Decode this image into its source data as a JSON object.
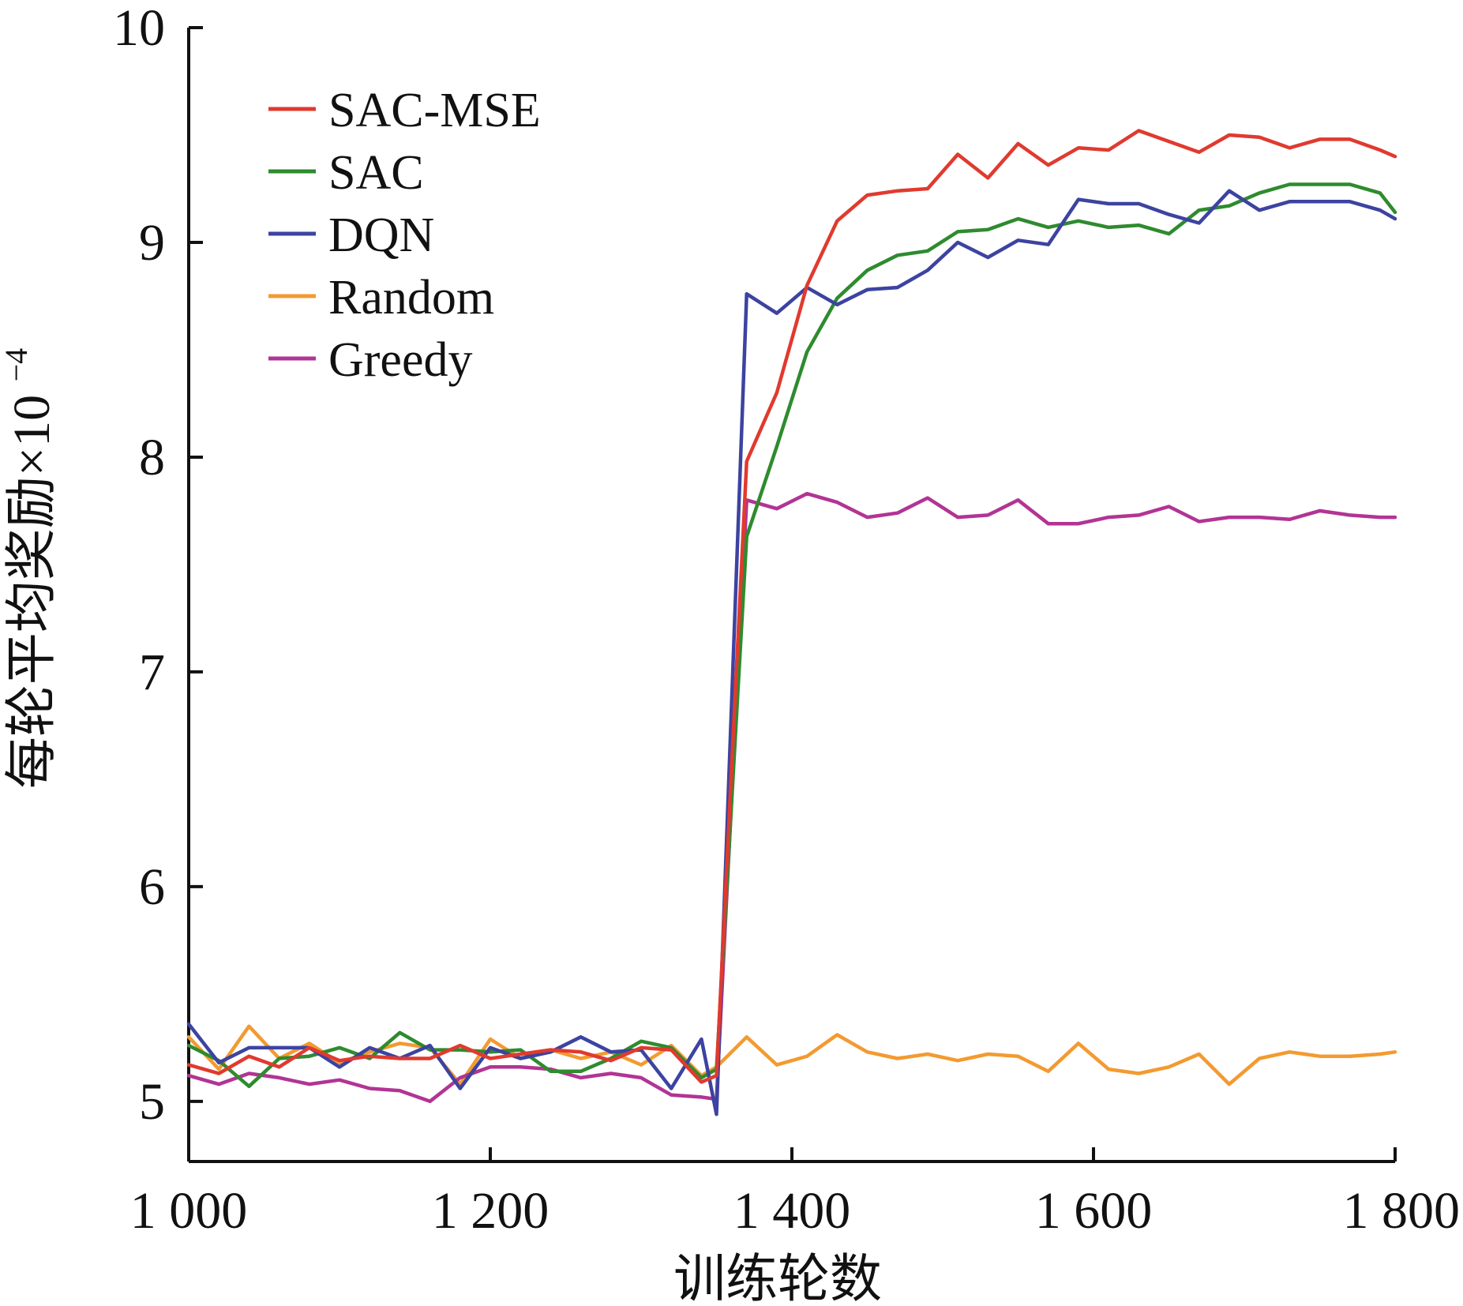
{
  "chart_data": {
    "type": "line",
    "title": "",
    "xlabel": "训练轮数",
    "ylabel": "每轮平均奖励×10",
    "ylabel_superscript": "−4",
    "xlim": [
      1000,
      1800
    ],
    "ylim": [
      4.72,
      10
    ],
    "x_ticks": [
      1000,
      1200,
      1400,
      1600,
      1800
    ],
    "x_tick_labels": [
      "1 000",
      "1 200",
      "1 400",
      "1 600",
      "1 800"
    ],
    "y_ticks": [
      5,
      6,
      7,
      8,
      9,
      10
    ],
    "y_tick_labels": [
      "5",
      "6",
      "7",
      "8",
      "9",
      "10"
    ],
    "grid": false,
    "legend_position": "top-left",
    "x": [
      1000,
      1020,
      1040,
      1060,
      1080,
      1100,
      1120,
      1140,
      1160,
      1180,
      1200,
      1220,
      1240,
      1260,
      1280,
      1300,
      1320,
      1340,
      1350,
      1370,
      1390,
      1410,
      1430,
      1450,
      1470,
      1490,
      1510,
      1530,
      1550,
      1570,
      1590,
      1610,
      1630,
      1650,
      1670,
      1690,
      1710,
      1730,
      1750,
      1770,
      1790,
      1800
    ],
    "series": [
      {
        "name": "SAC-MSE",
        "color": "#e03a2f",
        "values": [
          5.17,
          5.13,
          5.21,
          5.16,
          5.25,
          5.19,
          5.21,
          5.2,
          5.2,
          5.26,
          5.2,
          5.22,
          5.24,
          5.23,
          5.19,
          5.25,
          5.24,
          5.09,
          5.12,
          7.98,
          8.3,
          8.8,
          9.1,
          9.22,
          9.24,
          9.25,
          9.41,
          9.3,
          9.46,
          9.36,
          9.44,
          9.43,
          9.52,
          9.47,
          9.42,
          9.5,
          9.49,
          9.44,
          9.48,
          9.48,
          9.43,
          9.4
        ]
      },
      {
        "name": "SAC",
        "color": "#2e8b2e",
        "values": [
          5.26,
          5.19,
          5.07,
          5.2,
          5.21,
          5.25,
          5.2,
          5.32,
          5.24,
          5.24,
          5.23,
          5.24,
          5.14,
          5.14,
          5.2,
          5.28,
          5.25,
          5.11,
          5.15,
          7.63,
          8.05,
          8.49,
          8.74,
          8.87,
          8.94,
          8.96,
          9.05,
          9.06,
          9.11,
          9.07,
          9.1,
          9.07,
          9.08,
          9.04,
          9.15,
          9.17,
          9.23,
          9.27,
          9.27,
          9.27,
          9.23,
          9.14
        ]
      },
      {
        "name": "DQN",
        "color": "#3c43a0",
        "values": [
          5.36,
          5.18,
          5.25,
          5.25,
          5.25,
          5.16,
          5.25,
          5.2,
          5.26,
          5.06,
          5.25,
          5.2,
          5.23,
          5.3,
          5.23,
          5.24,
          5.06,
          5.29,
          4.94,
          8.76,
          8.67,
          8.79,
          8.71,
          8.78,
          8.79,
          8.87,
          9.0,
          8.93,
          9.01,
          8.99,
          9.2,
          9.18,
          9.18,
          9.13,
          9.09,
          9.24,
          9.15,
          9.19,
          9.19,
          9.19,
          9.15,
          9.11
        ]
      },
      {
        "name": "Random",
        "color": "#f39a30",
        "values": [
          5.3,
          5.15,
          5.35,
          5.2,
          5.27,
          5.18,
          5.23,
          5.27,
          5.25,
          5.08,
          5.29,
          5.2,
          5.24,
          5.2,
          5.23,
          5.17,
          5.26,
          5.12,
          5.16,
          5.3,
          5.17,
          5.21,
          5.31,
          5.23,
          5.2,
          5.22,
          5.19,
          5.22,
          5.21,
          5.14,
          5.27,
          5.15,
          5.13,
          5.16,
          5.22,
          5.08,
          5.2,
          5.23,
          5.21,
          5.21,
          5.22,
          5.23
        ]
      },
      {
        "name": "Greedy",
        "color": "#b23494",
        "values": [
          5.12,
          5.08,
          5.13,
          5.11,
          5.08,
          5.1,
          5.06,
          5.05,
          5.0,
          5.11,
          5.16,
          5.16,
          5.15,
          5.11,
          5.13,
          5.11,
          5.03,
          5.02,
          5.01,
          7.8,
          7.76,
          7.83,
          7.79,
          7.72,
          7.74,
          7.81,
          7.72,
          7.73,
          7.8,
          7.69,
          7.69,
          7.72,
          7.73,
          7.77,
          7.7,
          7.72,
          7.72,
          7.71,
          7.75,
          7.73,
          7.72,
          7.72
        ]
      }
    ]
  }
}
